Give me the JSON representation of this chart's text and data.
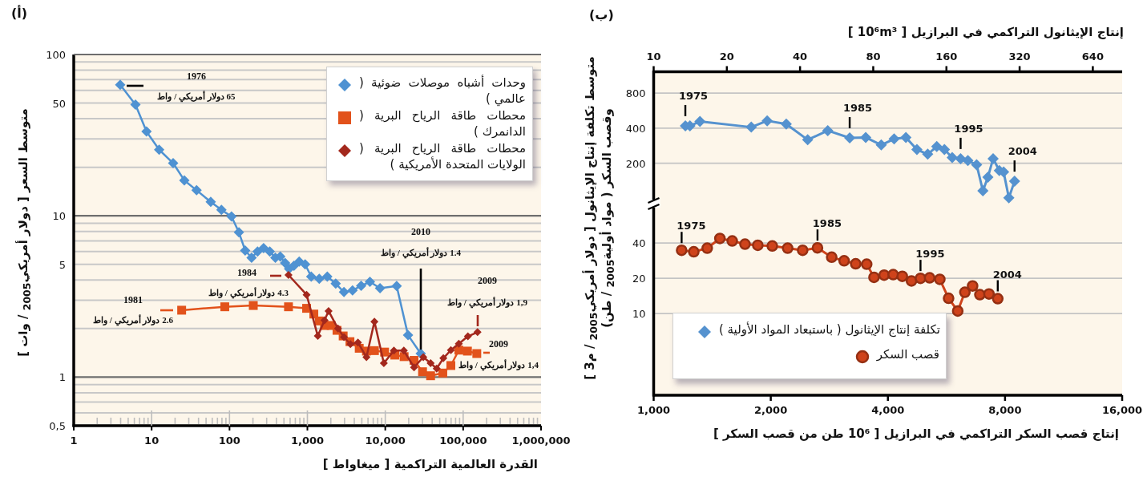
{
  "chart_data": [
    {
      "type": "line",
      "title": "(أ)",
      "xlabel": "القدرة العالمية التراكمية [ ميغاواط ]",
      "ylabel": "متوسط السعر [ دولار أمريكي$_{2005}$ / وات ]",
      "log": "xy",
      "xlim": [
        1,
        1000000
      ],
      "ylim": [
        0.5,
        100
      ],
      "xticks": [
        1,
        10,
        100,
        {
          "value": 1000,
          "label": "1,000"
        },
        {
          "value": 10000,
          "label": "10,000"
        },
        {
          "value": 100000,
          "label": "100,000"
        },
        {
          "value": 1000000,
          "label": "1,000,000"
        }
      ],
      "yticks": [
        {
          "value": 0.5,
          "label": "0,5"
        },
        1,
        5,
        10,
        50,
        100
      ],
      "grid": "y",
      "legend": "top right",
      "line_style": "solid",
      "series": [
        {
          "name": "وحدات أشباه موصلات ضوئية ( عالمي )",
          "color": "#4f92d2",
          "marker": "diamond",
          "x": [
            3.95,
            6.2,
            8.6,
            12.5,
            18.9,
            26.3,
            37.8,
            57.4,
            78.7,
            106,
            132,
            159,
            192,
            229,
            274,
            329,
            388,
            448,
            517,
            582,
            671,
            785,
            935,
            1120,
            1420,
            1800,
            2310,
            2950,
            3800,
            4900,
            6350,
            8570,
            14000,
            19600,
            28500
          ],
          "values": [
            65,
            48.9,
            33.3,
            25.7,
            21.2,
            16.6,
            14.4,
            12.2,
            10.9,
            9.9,
            7.9,
            6.1,
            5.5,
            6.0,
            6.3,
            6.0,
            5.5,
            5.6,
            5.1,
            4.7,
            4.9,
            5.2,
            5.0,
            4.2,
            4.07,
            4.2,
            3.8,
            3.37,
            3.45,
            3.68,
            3.9,
            3.56,
            3.67,
            1.82,
            1.4
          ]
        },
        {
          "name": "محطات طاقة الرياح البرية ( الدانمرك )",
          "color": "#e2521b",
          "marker": "square",
          "x": [
            24.3,
            87,
            202,
            572,
            977,
            1210,
            1420,
            1660,
            2020,
            2400,
            2880,
            3520,
            4630,
            5730,
            7260,
            9800,
            13250,
            17460,
            23400,
            30100,
            38200,
            54800,
            69500,
            88000,
            113500,
            149600
          ],
          "values": [
            2.6,
            2.73,
            2.78,
            2.73,
            2.67,
            2.46,
            2.23,
            2.09,
            2.09,
            1.95,
            1.8,
            1.66,
            1.51,
            1.45,
            1.46,
            1.43,
            1.37,
            1.34,
            1.27,
            1.08,
            1.02,
            1.06,
            1.18,
            1.47,
            1.45,
            1.4
          ]
        },
        {
          "name": "محطات طاقة الرياح البرية ( الولايات المتحدة الأمريكية )",
          "color": "#a3281d",
          "marker": "diamond",
          "x": [
            572,
            977,
            1360,
            1660,
            1870,
            2470,
            2950,
            3570,
            4460,
            5730,
            7260,
            9580,
            12900,
            17300,
            23400,
            30800,
            38200,
            45700,
            55700,
            69500,
            88000,
            115000,
            153000
          ],
          "values": [
            4.3,
            3.24,
            1.8,
            2.25,
            2.57,
            2.0,
            1.77,
            1.6,
            1.64,
            1.33,
            2.21,
            1.22,
            1.46,
            1.46,
            1.15,
            1.33,
            1.22,
            1.13,
            1.31,
            1.47,
            1.61,
            1.79,
            1.9
          ]
        }
      ],
      "annotations": [
        "1976",
        "65 دولار أمريكي / واط",
        "1984",
        "4.3 دولار أمريكي / واط",
        "1981",
        "2.6 دولار أمريكي / واط",
        "2010",
        "1.4 دولار أمريكي / واط",
        "2009",
        "1,9 دولار أمريكي / واط",
        "2009",
        "1,4 دولار أمريكي / واط"
      ]
    },
    {
      "type": "line",
      "title": "(ب)",
      "xlabel": "إنتاج الإيثانول التراكمي في البرازيل [ 10⁶m³ ]",
      "ylabel": "متوسط تكلفة إنتاج الإيثانول [ دولار أمريكي$_{2005}$ / م3 ] وقصب السكر ( مواد أولية$_{2005}$ / طن)",
      "log": "xy",
      "xlim": [
        10,
        845
      ],
      "xticks": [
        10,
        20,
        40,
        80,
        160,
        320,
        640
      ],
      "ylim": [
        90,
        1220
      ],
      "yticks": [
        200,
        400,
        800
      ],
      "grid": "y",
      "legend": "bottom left",
      "line_style": "solid",
      "series": [
        {
          "name": "تكلفة إنتاج الإيثانول ( باستبعاد المواد الأولية )",
          "color": "#5592cf",
          "marker": "diamond",
          "x": [
            13.5,
            14.1,
            15.5,
            25.2,
            29.3,
            35.1,
            43,
            52,
            64,
            74.5,
            86.3,
            97.5,
            109,
            121,
            134,
            146,
            157,
            169,
            183,
            196,
            213,
            226,
            237,
            249,
            264,
            275,
            289,
            305
          ],
          "values": [
            419,
            419,
            456,
            408,
            463,
            434,
            318,
            381,
            330,
            333,
            287,
            323,
            333,
            262,
            239,
            278,
            262,
            224,
            219,
            211,
            194,
            116,
            152,
            219,
            173,
            168,
            101,
            140
          ]
        }
      ],
      "annotations": [
        {
          "text": "1975",
          "x": 13.5,
          "y": 419
        },
        {
          "text": "1985",
          "x": 64,
          "y": 330
        },
        {
          "text": "1995",
          "x": 183,
          "y": 219
        },
        {
          "text": "2004",
          "x": 305,
          "y": 140
        }
      ]
    },
    {
      "type": "line",
      "xlabel": "إنتاج قصب السكر التراكمي في البرازيل [ 10⁶ طن من قصب السكر ]",
      "log": "xy",
      "xlim": [
        1000,
        16000
      ],
      "xticks": [
        {
          "value": 1000,
          "label": "1,000"
        },
        {
          "value": 2000,
          "label": "2,000"
        },
        {
          "value": 4000,
          "label": "4,000"
        },
        {
          "value": 8000,
          "label": "8,000"
        },
        {
          "value": 16000,
          "label": "16,000"
        }
      ],
      "ylim": [
        2,
        87
      ],
      "yticks": [
        10,
        20,
        40
      ],
      "grid": "y",
      "legend": "bottom left",
      "line_style": "solid",
      "series": [
        {
          "name": "قصب السكر",
          "color": "#cf431b",
          "marker": "circle",
          "x": [
            1180,
            1268,
            1373,
            1480,
            1592,
            1717,
            1852,
            2018,
            2210,
            2415,
            2637,
            2868,
            3087,
            3306,
            3528,
            3684,
            3912,
            4127,
            4356,
            4599,
            4851,
            5120,
            5438,
            5728,
            6047,
            6308,
            6602,
            6893,
            7275,
            7663
          ],
          "values": [
            34.7,
            33.7,
            36.2,
            43.8,
            41.7,
            39.2,
            38.3,
            37.8,
            36.2,
            34.7,
            36.4,
            30.3,
            28.2,
            26.6,
            26.4,
            20.4,
            21.3,
            21.5,
            20.8,
            19.0,
            20.0,
            20.2,
            19.6,
            13.5,
            10.5,
            15.2,
            17.2,
            14.5,
            14.7,
            13.4
          ]
        }
      ],
      "annotations": [
        {
          "text": "1975",
          "x": 1180,
          "y": 34.7
        },
        {
          "text": "1985",
          "x": 2637,
          "y": 36.4
        },
        {
          "text": "1995",
          "x": 4851,
          "y": 20.0
        },
        {
          "text": "2004",
          "x": 7663,
          "y": 13.4
        }
      ]
    }
  ]
}
